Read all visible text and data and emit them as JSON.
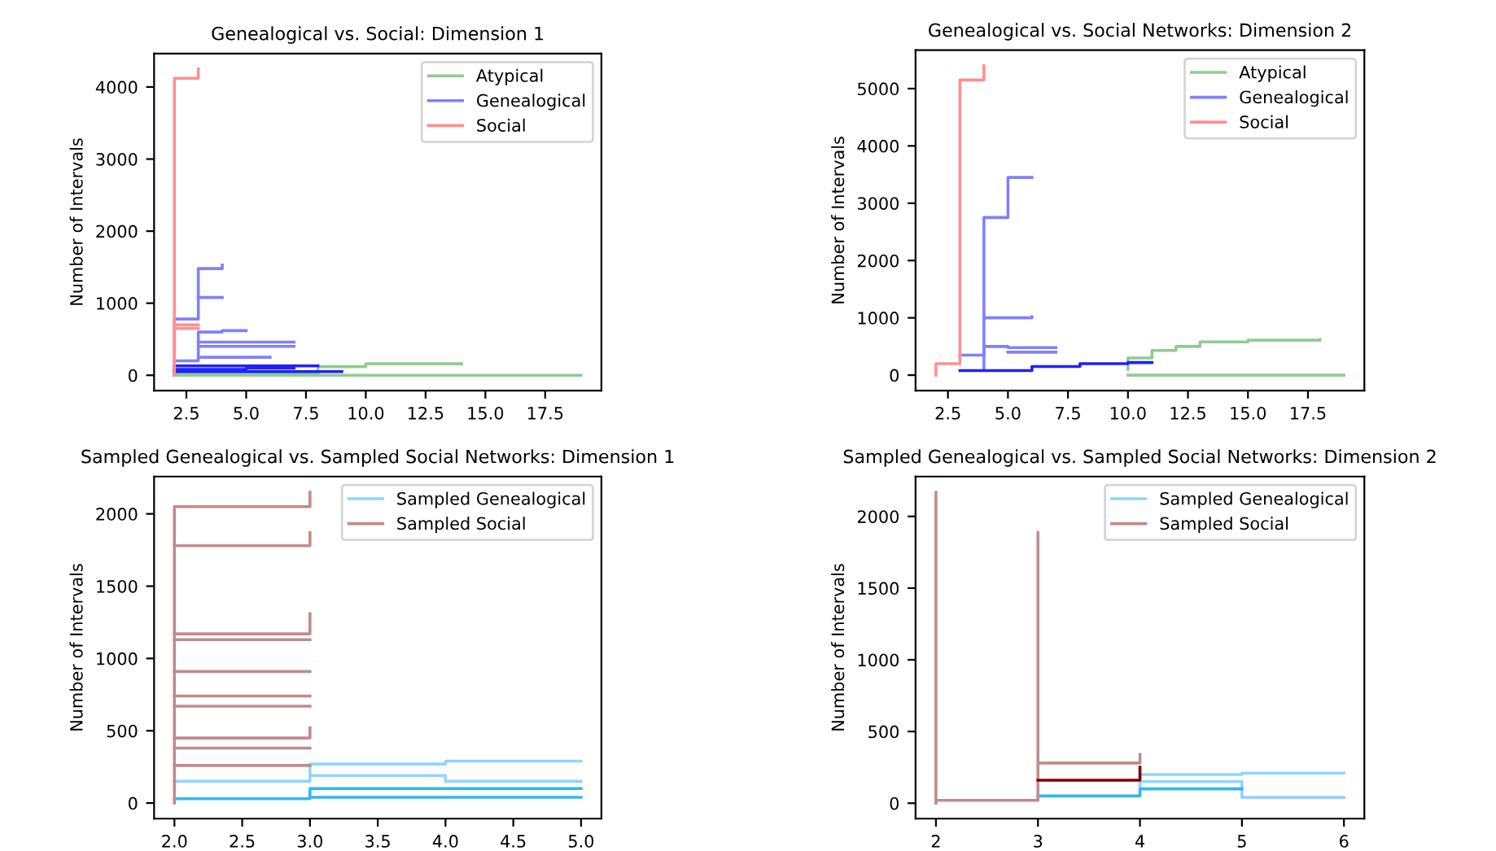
{
  "chart_data": [
    {
      "type": "step",
      "title": "Genealogical vs. Social: Dimension 1",
      "ylabel": "Number of Intervals",
      "xlim": [
        1.15,
        19.85
      ],
      "xticks": [
        2.5,
        {
          "value": 5,
          "label": "5.0"
        },
        7.5,
        {
          "value": 10,
          "label": "10.0"
        },
        12.5,
        {
          "value": 15,
          "label": "15.0"
        },
        17.5
      ],
      "ylim": [
        -213,
        4463
      ],
      "yticks": [
        0,
        1000,
        2000,
        3000,
        4000
      ],
      "legend": "top right",
      "series": [
        {
          "name": "Atypical",
          "color": "#8fcc8f",
          "x": [
            2,
            2,
            8,
            8,
            10,
            10,
            14
          ],
          "values": [
            0,
            20,
            20,
            120,
            120,
            160,
            160
          ]
        },
        {
          "color": "#8fcc8f",
          "x": [
            2,
            18,
            18,
            19
          ],
          "values": [
            0,
            0,
            0,
            0
          ]
        },
        {
          "name": "Genealogical",
          "color": "#8080ff",
          "x": [
            2,
            2,
            3,
            3,
            4
          ],
          "values": [
            0,
            780,
            780,
            1480,
            1530
          ]
        },
        {
          "color": "#8080ff",
          "x": [
            3,
            4
          ],
          "values": [
            1080,
            1080
          ]
        },
        {
          "color": "#8080ff",
          "x": [
            2,
            3,
            3,
            4,
            4,
            5
          ],
          "values": [
            200,
            200,
            600,
            600,
            620,
            620
          ]
        },
        {
          "color": "#8080ff",
          "x": [
            3,
            7
          ],
          "values": [
            460,
            460
          ]
        },
        {
          "color": "#8080ff",
          "x": [
            3,
            7
          ],
          "values": [
            400,
            400
          ]
        },
        {
          "color": "#8080ff",
          "x": [
            3,
            6
          ],
          "values": [
            250,
            250
          ]
        },
        {
          "color": "#2020ff",
          "x": [
            2,
            8
          ],
          "values": [
            130,
            130
          ]
        },
        {
          "color": "#2020ff",
          "x": [
            2,
            9
          ],
          "values": [
            50,
            50
          ]
        },
        {
          "color": "#2020ff",
          "x": [
            2,
            5,
            5,
            7
          ],
          "values": [
            80,
            80,
            100,
            100
          ]
        },
        {
          "name": "Social",
          "color": "#ff9090",
          "x": [
            2,
            2,
            3,
            3
          ],
          "values": [
            0,
            4120,
            4120,
            4250
          ]
        },
        {
          "color": "#ff9090",
          "x": [
            2,
            3
          ],
          "values": [
            700,
            700
          ]
        },
        {
          "color": "#ff9090",
          "x": [
            2,
            3
          ],
          "values": [
            650,
            650
          ]
        }
      ]
    },
    {
      "type": "step",
      "title": "Genealogical vs. Social Networks: Dimension 2",
      "ylabel": "Number of Intervals",
      "xlim": [
        1.15,
        19.85
      ],
      "xticks": [
        2.5,
        {
          "value": 5,
          "label": "5.0"
        },
        7.5,
        {
          "value": 10,
          "label": "10.0"
        },
        12.5,
        {
          "value": 15,
          "label": "15.0"
        },
        17.5
      ],
      "ylim": [
        -270,
        5670
      ],
      "yticks": [
        0,
        1000,
        2000,
        3000,
        4000,
        5000
      ],
      "legend": "top right",
      "series": [
        {
          "name": "Atypical",
          "color": "#8fcc8f",
          "x": [
            10,
            10,
            11,
            11,
            12,
            12,
            13,
            13,
            15,
            15,
            18
          ],
          "values": [
            100,
            300,
            300,
            430,
            430,
            500,
            500,
            580,
            580,
            610,
            620
          ]
        },
        {
          "color": "#8fcc8f",
          "x": [
            10,
            19
          ],
          "values": [
            0,
            0
          ]
        },
        {
          "name": "Genealogical",
          "color": "#8080ff",
          "x": [
            4,
            4,
            5,
            5,
            6
          ],
          "values": [
            100,
            2750,
            2750,
            3450,
            3450
          ]
        },
        {
          "color": "#8080ff",
          "x": [
            4,
            5,
            5,
            6
          ],
          "values": [
            1000,
            1000,
            1000,
            1020
          ]
        },
        {
          "color": "#8080ff",
          "x": [
            3,
            4,
            4,
            5,
            5,
            7
          ],
          "values": [
            350,
            350,
            500,
            500,
            480,
            480
          ]
        },
        {
          "color": "#8080ff",
          "x": [
            5,
            7
          ],
          "values": [
            400,
            400
          ]
        },
        {
          "color": "#2020ff",
          "x": [
            3,
            6,
            6,
            8,
            8,
            10,
            10,
            11
          ],
          "values": [
            80,
            80,
            150,
            150,
            200,
            200,
            220,
            220
          ]
        },
        {
          "name": "Social",
          "color": "#ff9090",
          "x": [
            2,
            2,
            3,
            3,
            4,
            4
          ],
          "values": [
            0,
            200,
            200,
            5150,
            5150,
            5400
          ]
        }
      ]
    },
    {
      "type": "step",
      "title": "Sampled Genealogical vs. Sampled Social Networks: Dimension 1",
      "ylabel": "Number of Intervals",
      "xlim": [
        1.85,
        5.15
      ],
      "xticks": [
        {
          "value": 2,
          "label": "2.0"
        },
        2.5,
        {
          "value": 3,
          "label": "3.0"
        },
        3.5,
        {
          "value": 4,
          "label": "4.0"
        },
        4.5,
        {
          "value": 5,
          "label": "5.0"
        }
      ],
      "ylim": [
        -108,
        2258
      ],
      "yticks": [
        0,
        500,
        1000,
        1500,
        2000
      ],
      "legend": "top right",
      "series": [
        {
          "name": "Sampled Genealogical",
          "color": "#8fd6f8",
          "x": [
            2,
            3,
            3,
            4,
            4,
            5
          ],
          "values": [
            150,
            150,
            270,
            270,
            290,
            290
          ]
        },
        {
          "color": "#8fd6f8",
          "x": [
            3,
            4,
            4,
            5
          ],
          "values": [
            190,
            190,
            150,
            150
          ]
        },
        {
          "color": "#30b8f0",
          "x": [
            2,
            3,
            3,
            5
          ],
          "values": [
            30,
            30,
            100,
            100
          ]
        },
        {
          "color": "#30b8f0",
          "x": [
            3,
            5
          ],
          "values": [
            40,
            40
          ]
        },
        {
          "name": "Sampled Social",
          "color": "#c48a8a",
          "x": [
            2,
            2,
            3,
            3
          ],
          "values": [
            0,
            2050,
            2050,
            2150
          ]
        },
        {
          "color": "#c48a8a",
          "x": [
            2,
            3,
            3
          ],
          "values": [
            1780,
            1780,
            1870
          ]
        },
        {
          "color": "#c48a8a",
          "x": [
            2,
            3,
            3
          ],
          "values": [
            1170,
            1170,
            1310
          ]
        },
        {
          "color": "#c48a8a",
          "x": [
            2,
            3
          ],
          "values": [
            1130,
            1130
          ]
        },
        {
          "color": "#c48a8a",
          "x": [
            2,
            3
          ],
          "values": [
            910,
            910
          ]
        },
        {
          "color": "#c48a8a",
          "x": [
            2,
            3
          ],
          "values": [
            740,
            740
          ]
        },
        {
          "color": "#c48a8a",
          "x": [
            2,
            3
          ],
          "values": [
            670,
            670
          ]
        },
        {
          "color": "#c48a8a",
          "x": [
            2,
            3,
            3
          ],
          "values": [
            450,
            450,
            520
          ]
        },
        {
          "color": "#c48a8a",
          "x": [
            2,
            3
          ],
          "values": [
            380,
            380
          ]
        },
        {
          "color": "#c48a8a",
          "x": [
            2,
            3
          ],
          "values": [
            260,
            260
          ]
        }
      ]
    },
    {
      "type": "step",
      "title": "Sampled Genealogical vs. Sampled Social Networks: Dimension 2",
      "ylabel": "Number of Intervals",
      "xlim": [
        1.8,
        6.2
      ],
      "xticks": [
        2,
        3,
        4,
        5,
        6
      ],
      "ylim": [
        -108,
        2278
      ],
      "yticks": [
        0,
        500,
        1000,
        1500,
        2000
      ],
      "legend": "top right",
      "series": [
        {
          "name": "Sampled Genealogical",
          "color": "#8fd6f8",
          "x": [
            4,
            4,
            5,
            5,
            6
          ],
          "values": [
            100,
            200,
            200,
            210,
            210
          ]
        },
        {
          "color": "#8fd6f8",
          "x": [
            4,
            5,
            5,
            6
          ],
          "values": [
            150,
            150,
            40,
            40
          ]
        },
        {
          "color": "#30b8f0",
          "x": [
            3,
            4,
            4,
            5
          ],
          "values": [
            50,
            50,
            100,
            100
          ]
        },
        {
          "name": "Sampled Social",
          "color": "#c48a8a",
          "x": [
            2,
            2,
            2,
            3,
            3,
            3,
            4,
            4
          ],
          "values": [
            0,
            2170,
            20,
            20,
            1890,
            280,
            280,
            340
          ]
        },
        {
          "color": "#800000",
          "x": [
            3,
            4,
            4
          ],
          "values": [
            160,
            160,
            250
          ]
        }
      ]
    }
  ]
}
